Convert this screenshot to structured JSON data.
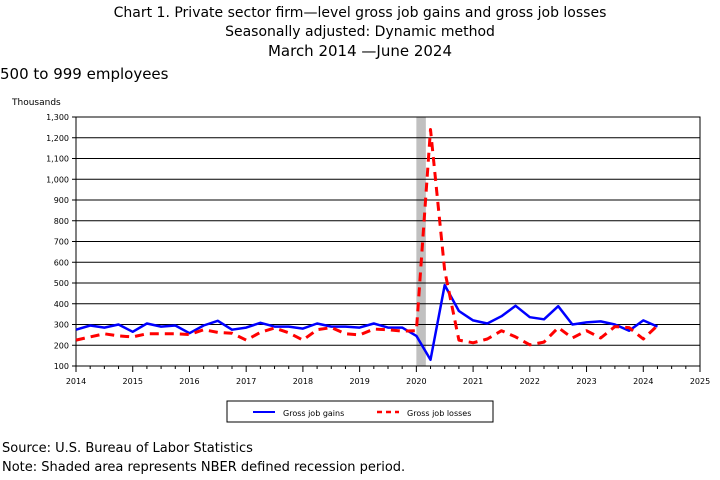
{
  "header": {
    "title_line1": "Chart 1. Private sector firm—level gross job gains and gross job losses",
    "title_line2": "Seasonally adjusted: Dynamic method",
    "title_line3": "March 2014  —June 2024",
    "subtitle": "500 to 999 employees",
    "units": "Thousands"
  },
  "footer": {
    "source": "Source: U.S. Bureau of Labor Statistics",
    "note": "Note: Shaded area represents NBER defined recession period."
  },
  "chart_data": {
    "type": "line",
    "x_start_year": 2014,
    "x_start_quarter": 1,
    "xlim": [
      2014,
      2025
    ],
    "ylim": [
      100,
      1300
    ],
    "yticks": [
      100,
      200,
      300,
      400,
      500,
      600,
      700,
      800,
      900,
      1000,
      1100,
      1200,
      1300
    ],
    "ytick_labels": [
      "100",
      "200",
      "300",
      "400",
      "500",
      "600",
      "700",
      "800",
      "900",
      "1,000",
      "1,100",
      "1,200",
      "1,300"
    ],
    "xticks": [
      2014,
      2015,
      2016,
      2017,
      2018,
      2019,
      2020,
      2021,
      2022,
      2023,
      2024,
      2025
    ],
    "xtick_labels": [
      "2014",
      "2015",
      "2016",
      "2017",
      "2018",
      "2019",
      "2020",
      "2021",
      "2022",
      "2023",
      "2024",
      "2025"
    ],
    "grid": true,
    "legend_position": "bottom-center",
    "recession": {
      "start": 2020.0,
      "end": 2020.167
    },
    "recession_color": "#c0c0c0",
    "series": [
      {
        "name": "Gross job gains",
        "color": "#0000ff",
        "style": "solid",
        "values": [
          275,
          295,
          285,
          300,
          265,
          305,
          290,
          295,
          258,
          295,
          318,
          275,
          285,
          308,
          290,
          290,
          280,
          305,
          290,
          290,
          285,
          305,
          285,
          285,
          245,
          130,
          490,
          365,
          320,
          305,
          340,
          390,
          335,
          325,
          388,
          300,
          310,
          315,
          300,
          270,
          320,
          290
        ]
      },
      {
        "name": "Gross job losses",
        "color": "#ff0000",
        "style": "dashed",
        "values": [
          225,
          240,
          255,
          245,
          240,
          255,
          255,
          255,
          252,
          275,
          262,
          258,
          225,
          262,
          283,
          260,
          225,
          275,
          285,
          255,
          250,
          278,
          275,
          268,
          270,
          1240,
          560,
          225,
          212,
          230,
          270,
          240,
          202,
          215,
          285,
          235,
          270,
          235,
          290,
          285,
          230,
          295
        ]
      }
    ]
  }
}
